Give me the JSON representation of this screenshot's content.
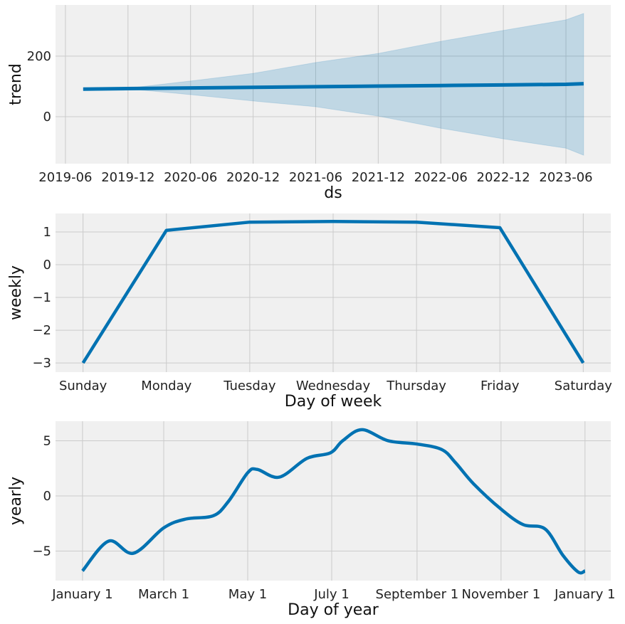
{
  "colors": {
    "line": "#0072B2",
    "band": "#0072B2",
    "axes_bg": "#f0f0f0",
    "grid": "#cbcbcb"
  },
  "chart_data": [
    {
      "type": "line",
      "name": "trend",
      "xlabel": "ds",
      "ylabel": "trend",
      "x_ticks": [
        "2019-06",
        "2019-12",
        "2020-06",
        "2020-12",
        "2021-06",
        "2021-12",
        "2022-06",
        "2022-12",
        "2023-06"
      ],
      "y_ticks": [
        0,
        200
      ],
      "y_tick_labels": [
        "0",
        "200"
      ],
      "ylim": [
        -155,
        369
      ],
      "x_months_since_2019_06_range": [
        -0.95,
        52.3
      ],
      "x": [
        "2019-07-22",
        "2020-01-01",
        "2020-06-01",
        "2020-12-01",
        "2021-06-01",
        "2021-12-01",
        "2022-06-01",
        "2022-12-01",
        "2023-06-01",
        "2023-07-20"
      ],
      "x_months": [
        1.7,
        6.0,
        12.0,
        18.0,
        24.0,
        30.0,
        36.0,
        42.0,
        48.0,
        49.7
      ],
      "series": [
        {
          "name": "trend",
          "values": [
            91,
            93,
            95,
            97,
            99,
            101,
            103,
            105,
            107,
            109
          ]
        },
        {
          "name": "trend_upper",
          "values": [
            91,
            94,
            118,
            143,
            179,
            209,
            249,
            285,
            320,
            341
          ]
        },
        {
          "name": "trend_lower",
          "values": [
            91,
            92,
            73,
            52,
            33,
            2,
            -38,
            -73,
            -104,
            -127
          ]
        }
      ]
    },
    {
      "type": "line",
      "name": "weekly",
      "xlabel": "Day of week",
      "ylabel": "weekly",
      "categories": [
        "Sunday",
        "Monday",
        "Tuesday",
        "Wednesday",
        "Thursday",
        "Friday",
        "Saturday"
      ],
      "values": [
        -3.0,
        1.05,
        1.3,
        1.32,
        1.3,
        1.13,
        -3.0
      ],
      "y_ticks": [
        -3,
        -2,
        -1,
        0,
        1
      ],
      "y_tick_labels": [
        "−3",
        "−2",
        "−1",
        "0",
        "1"
      ],
      "ylim": [
        -3.28,
        1.565
      ],
      "xlim": [
        -0.33,
        6.33
      ]
    },
    {
      "type": "line",
      "name": "yearly",
      "xlabel": "Day of year",
      "ylabel": "yearly",
      "x_ticks": [
        0,
        59,
        120,
        181,
        243,
        304,
        365
      ],
      "x_tick_labels": [
        "January 1",
        "March 1",
        "May 1",
        "July 1",
        "September 1",
        "November 1",
        "January 1"
      ],
      "y_ticks": [
        -5,
        0,
        5
      ],
      "y_tick_labels": [
        "−5",
        "0",
        "5"
      ],
      "ylim": [
        -7.68,
        6.77
      ],
      "xlim": [
        -19.6,
        383.7
      ],
      "x": [
        0,
        19,
        37,
        59,
        75,
        95,
        106,
        120,
        127,
        143,
        163,
        180,
        189,
        203,
        222,
        243,
        261,
        271,
        284,
        304,
        320,
        336,
        349,
        360,
        365
      ],
      "values": [
        -6.8,
        -4.1,
        -5.2,
        -2.9,
        -2.1,
        -1.8,
        -0.5,
        2.1,
        2.4,
        1.7,
        3.4,
        3.9,
        5.0,
        6.0,
        5.0,
        4.7,
        4.2,
        3.0,
        1.1,
        -1.2,
        -2.6,
        -3.0,
        -5.4,
        -6.9,
        -6.8
      ]
    }
  ]
}
